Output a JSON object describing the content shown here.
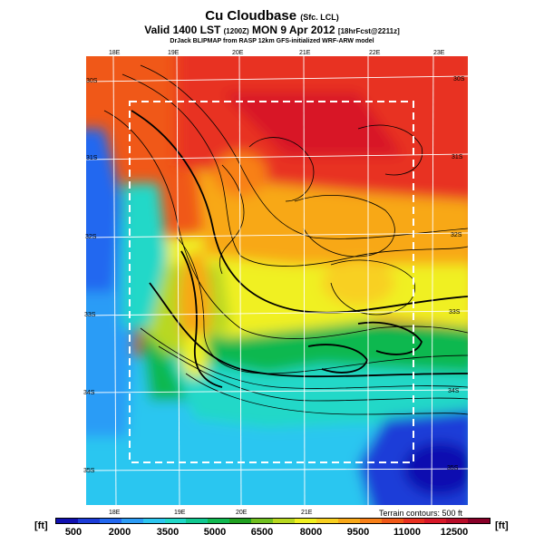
{
  "header": {
    "title": "Cu Cloudbase",
    "title_suffix": "(Sfc. LCL)",
    "valid_line": "Valid 1400 LST",
    "valid_zulu": "(1200Z)",
    "valid_date": "MON 9 Apr 2012",
    "forecast_tag": "[18hrFcst@2211z]",
    "credit": "DrJack BLIPMAP from RASP 12km GFS-initialized WRF-ARW model"
  },
  "map": {
    "lon_labels_top": [
      "18E",
      "19E",
      "20E",
      "21E",
      "22E",
      "23E"
    ],
    "lon_labels_bottom": [
      "18E",
      "19E",
      "20E",
      "21E"
    ],
    "lat_labels_right": [
      "30S",
      "31S",
      "32S",
      "33S",
      "34S",
      "35S"
    ],
    "lat_labels_left": [
      "30S",
      "31S",
      "32S",
      "33S",
      "34S",
      "35S"
    ],
    "terrain_note": "Terrain contours: 500 ft"
  },
  "legend": {
    "unit_left": "[ft]",
    "unit_right": "[ft]",
    "ticks": [
      "500",
      "2000",
      "3500",
      "5000",
      "6500",
      "8000",
      "9500",
      "11000",
      "12500"
    ],
    "colors": [
      "#1010b0",
      "#1c3cd8",
      "#2268f0",
      "#2c9cf6",
      "#2cc6f0",
      "#20d8c8",
      "#10c890",
      "#10b850",
      "#20a020",
      "#70c020",
      "#b8d820",
      "#f0f020",
      "#f8d020",
      "#f8a818",
      "#f88018",
      "#f05818",
      "#e83020",
      "#d81828",
      "#b80c28",
      "#880028"
    ]
  }
}
